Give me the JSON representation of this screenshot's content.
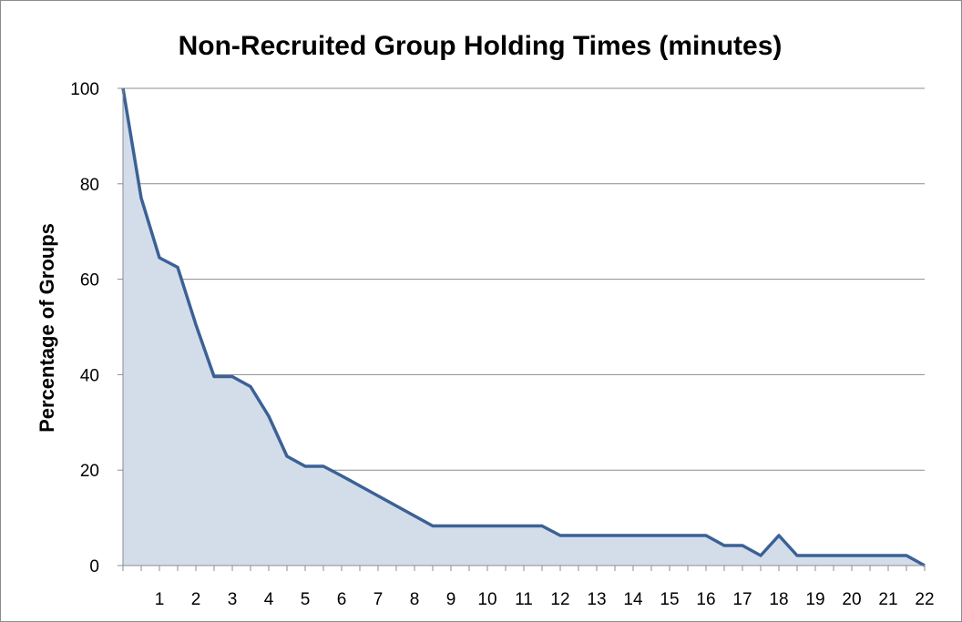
{
  "chart_data": {
    "type": "area",
    "title": "Non-Recruited Group Holding Times (minutes)",
    "xlabel": "",
    "ylabel": "Percentage of Groups",
    "xlim": [
      0,
      22
    ],
    "ylim": [
      0,
      100
    ],
    "x_ticks": [
      1,
      2,
      3,
      4,
      5,
      6,
      7,
      8,
      9,
      10,
      11,
      12,
      13,
      14,
      15,
      16,
      17,
      18,
      19,
      20,
      21,
      22
    ],
    "y_ticks": [
      0,
      20,
      40,
      60,
      80,
      100
    ],
    "grid": "horizontal",
    "legend": "none",
    "series": [
      {
        "line_color": "#3b6196",
        "fill_color": "#d3dde9",
        "x": [
          0,
          0.5,
          1,
          1.5,
          2,
          2.5,
          3,
          3.5,
          4,
          4.5,
          5,
          5.5,
          6,
          6.5,
          7,
          7.5,
          8,
          8.5,
          9,
          9.5,
          10,
          10.5,
          11,
          11.5,
          12,
          12.5,
          13,
          13.5,
          14,
          14.5,
          15,
          15.5,
          16,
          16.5,
          17,
          17.5,
          18,
          18.5,
          19,
          19.5,
          20,
          20.5,
          21,
          21.5,
          22
        ],
        "y": [
          100,
          77,
          64.5,
          62.5,
          50.5,
          39.6,
          39.6,
          37.5,
          31.3,
          22.9,
          20.8,
          20.8,
          18.8,
          16.7,
          14.6,
          12.5,
          10.4,
          8.3,
          8.3,
          8.3,
          8.3,
          8.3,
          8.3,
          8.3,
          6.3,
          6.3,
          6.3,
          6.3,
          6.3,
          6.3,
          6.3,
          6.3,
          6.3,
          4.2,
          4.2,
          2.1,
          6.3,
          2.1,
          2.1,
          2.1,
          2.1,
          2.1,
          2.1,
          2.1,
          0
        ]
      }
    ]
  }
}
